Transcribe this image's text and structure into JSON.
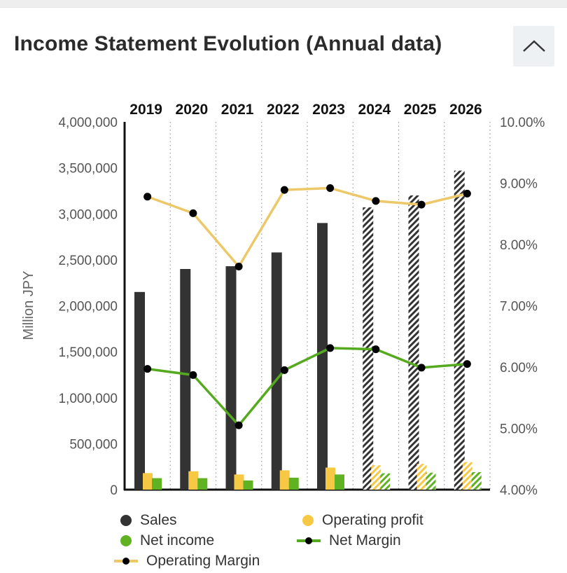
{
  "panel": {
    "title": "Income Statement Evolution (Annual data)"
  },
  "colors": {
    "sales": "#333333",
    "operating_profit": "#f7c843",
    "net_income": "#5fb323",
    "net_margin_line": "#56aa1f",
    "operating_margin_line": "#ecc869",
    "marker": "#000000"
  },
  "chart_data": {
    "type": "bar",
    "categories": [
      "2019",
      "2020",
      "2021",
      "2022",
      "2023",
      "2024",
      "2025",
      "2026"
    ],
    "forecast_from_index": 5,
    "ylabel": "Million JPY",
    "ylim": [
      0,
      4000000
    ],
    "y_ticks": [
      "0",
      "500,000",
      "1,000,000",
      "1,500,000",
      "2,000,000",
      "2,500,000",
      "3,000,000",
      "3,500,000",
      "4,000,000"
    ],
    "y2lim": [
      4,
      10
    ],
    "y2_ticks": [
      "4.00%",
      "5.00%",
      "6.00%",
      "7.00%",
      "8.00%",
      "9.00%",
      "10.00%"
    ],
    "grid": "vertical dotted",
    "legend_position": "bottom",
    "series": [
      {
        "name": "Sales",
        "kind": "bar",
        "axis": "left",
        "values": [
          2150000,
          2400000,
          2430000,
          2580000,
          2900000,
          3070000,
          3200000,
          3470000
        ]
      },
      {
        "name": "Operating profit",
        "kind": "bar",
        "axis": "left",
        "values": [
          180000,
          200000,
          165000,
          210000,
          240000,
          265000,
          280000,
          300000
        ]
      },
      {
        "name": "Net income",
        "kind": "bar",
        "axis": "left",
        "values": [
          125000,
          125000,
          100000,
          130000,
          165000,
          178000,
          185000,
          190000
        ]
      },
      {
        "name": "Net Margin",
        "kind": "line",
        "axis": "right",
        "values": [
          5.97,
          5.87,
          5.05,
          5.95,
          6.31,
          6.29,
          5.99,
          6.05
        ]
      },
      {
        "name": "Operating Margin",
        "kind": "line",
        "axis": "right",
        "values": [
          8.78,
          8.51,
          7.64,
          8.89,
          8.92,
          8.71,
          8.65,
          8.83
        ]
      }
    ]
  }
}
